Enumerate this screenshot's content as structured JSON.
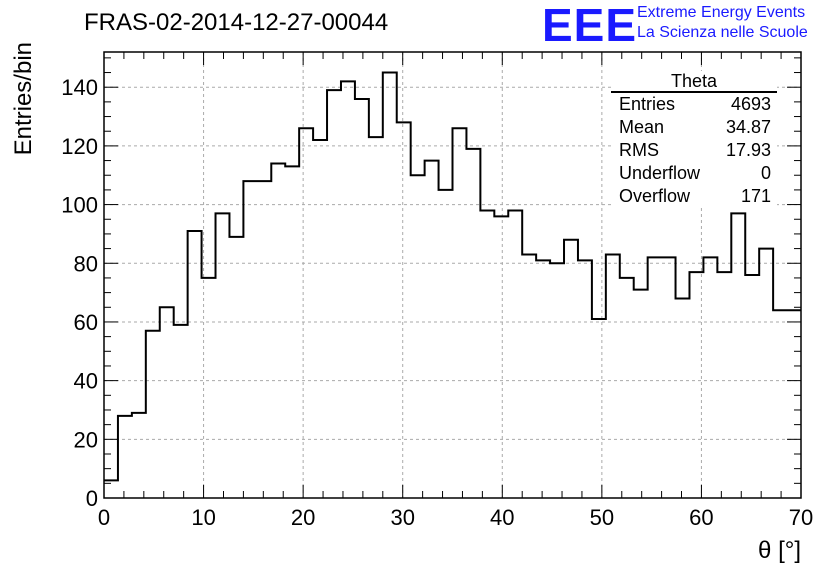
{
  "header": {
    "title": "FRAS-02-2014-12-27-00044",
    "logo": "EEE",
    "logo_line1": "Extreme Energy Events",
    "logo_line2": "La Scienza nelle Scuole"
  },
  "stats_box": {
    "title": "Theta",
    "rows": [
      {
        "label": "Entries",
        "value": "4693"
      },
      {
        "label": "Mean",
        "value": "34.87"
      },
      {
        "label": "RMS",
        "value": "17.93"
      },
      {
        "label": "Underflow",
        "value": "0"
      },
      {
        "label": "Overflow",
        "value": "171"
      }
    ]
  },
  "chart_data": {
    "type": "histogram",
    "xlabel": "θ [°]",
    "ylabel": "Entries/bin",
    "xlim": [
      0,
      70
    ],
    "ylim": [
      0,
      152
    ],
    "xticks": [
      0,
      10,
      20,
      30,
      40,
      50,
      60,
      70
    ],
    "yticks": [
      0,
      20,
      40,
      60,
      80,
      100,
      120,
      140
    ],
    "bin_width": 1.4,
    "bin_edges_start": 0,
    "values": [
      6,
      28,
      29,
      57,
      65,
      59,
      91,
      75,
      97,
      89,
      108,
      108,
      114,
      113,
      126,
      122,
      139,
      142,
      136,
      123,
      145,
      128,
      110,
      115,
      105,
      126,
      119,
      98,
      96,
      98,
      83,
      81,
      80,
      88,
      81,
      61,
      83,
      75,
      71,
      82,
      82,
      68,
      77,
      82,
      77,
      97,
      76,
      85,
      64,
      64
    ],
    "grid": true,
    "line_color": "#000000"
  }
}
